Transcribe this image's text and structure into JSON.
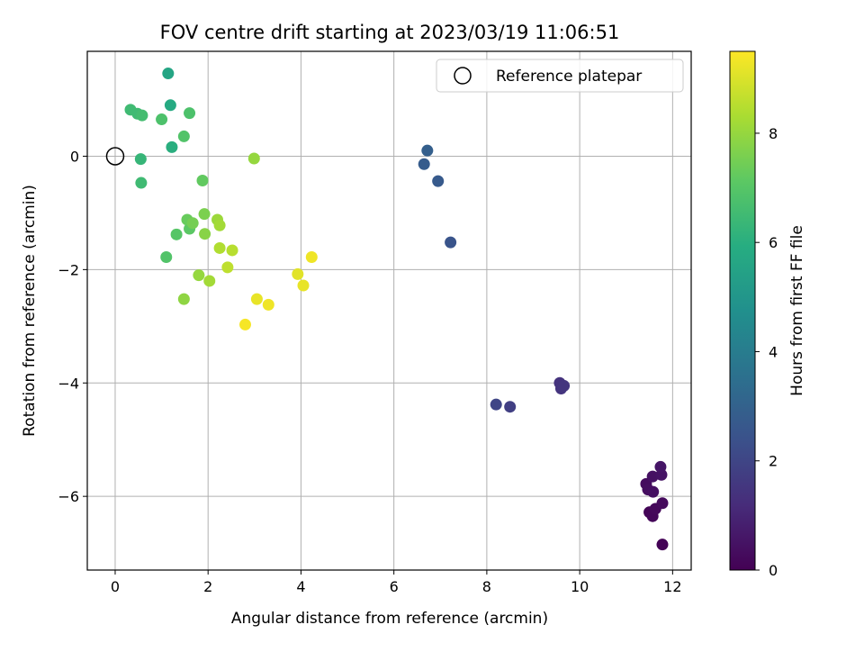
{
  "chart_data": {
    "type": "scatter",
    "title": "FOV centre drift starting at 2023/03/19 11:06:51",
    "xlabel": "Angular distance from reference (arcmin)",
    "ylabel": "Rotation from reference (arcmin)",
    "xlim": [
      -0.6,
      12.4
    ],
    "ylim": [
      -7.3,
      1.85
    ],
    "xticks": [
      0,
      2,
      4,
      6,
      8,
      10,
      12
    ],
    "yticks": [
      -6,
      -4,
      -2,
      0
    ],
    "grid": true,
    "legend": {
      "placement": "top-right",
      "entries": [
        "Reference platepar"
      ]
    },
    "reference_point": {
      "x": 0,
      "y": 0
    },
    "colorbar": {
      "label": "Hours from first FF file",
      "range": [
        0,
        9.5
      ],
      "ticks": [
        0,
        2,
        4,
        6,
        8
      ],
      "colormap": "viridis"
    },
    "points": [
      {
        "x": 11.78,
        "y": -6.85,
        "hours": 0.05
      },
      {
        "x": 11.5,
        "y": -6.28,
        "hours": 0.1
      },
      {
        "x": 11.57,
        "y": -6.35,
        "hours": 0.15
      },
      {
        "x": 11.63,
        "y": -6.22,
        "hours": 0.2
      },
      {
        "x": 11.78,
        "y": -6.12,
        "hours": 0.25
      },
      {
        "x": 11.43,
        "y": -5.78,
        "hours": 0.3
      },
      {
        "x": 11.47,
        "y": -5.88,
        "hours": 0.35
      },
      {
        "x": 11.58,
        "y": -5.92,
        "hours": 0.4
      },
      {
        "x": 11.57,
        "y": -5.65,
        "hours": 0.45
      },
      {
        "x": 11.76,
        "y": -5.62,
        "hours": 0.5
      },
      {
        "x": 11.74,
        "y": -5.48,
        "hours": 0.55
      },
      {
        "x": 9.57,
        "y": -4.0,
        "hours": 1.4
      },
      {
        "x": 9.6,
        "y": -4.1,
        "hours": 1.45
      },
      {
        "x": 9.66,
        "y": -4.05,
        "hours": 1.5
      },
      {
        "x": 8.5,
        "y": -4.42,
        "hours": 1.8
      },
      {
        "x": 8.2,
        "y": -4.38,
        "hours": 2.0
      },
      {
        "x": 7.22,
        "y": -1.52,
        "hours": 2.5
      },
      {
        "x": 6.95,
        "y": -0.44,
        "hours": 2.7
      },
      {
        "x": 6.65,
        "y": -0.14,
        "hours": 2.8
      },
      {
        "x": 6.72,
        "y": 0.1,
        "hours": 2.9
      },
      {
        "x": 1.14,
        "y": 1.46,
        "hours": 5.6
      },
      {
        "x": 1.19,
        "y": 0.9,
        "hours": 5.8
      },
      {
        "x": 1.22,
        "y": 0.16,
        "hours": 6.0
      },
      {
        "x": 0.55,
        "y": -0.05,
        "hours": 6.3
      },
      {
        "x": 0.33,
        "y": 0.82,
        "hours": 6.5
      },
      {
        "x": 0.48,
        "y": 0.75,
        "hours": 6.5
      },
      {
        "x": 0.58,
        "y": 0.72,
        "hours": 6.6
      },
      {
        "x": 0.56,
        "y": -0.47,
        "hours": 6.5
      },
      {
        "x": 1.0,
        "y": 0.65,
        "hours": 6.8
      },
      {
        "x": 1.6,
        "y": 0.76,
        "hours": 6.8
      },
      {
        "x": 1.48,
        "y": 0.35,
        "hours": 6.9
      },
      {
        "x": 1.1,
        "y": -1.78,
        "hours": 6.9
      },
      {
        "x": 1.32,
        "y": -1.38,
        "hours": 7.0
      },
      {
        "x": 1.6,
        "y": -1.28,
        "hours": 7.1
      },
      {
        "x": 1.88,
        "y": -0.43,
        "hours": 7.2
      },
      {
        "x": 1.55,
        "y": -1.12,
        "hours": 7.3
      },
      {
        "x": 1.67,
        "y": -1.18,
        "hours": 7.5
      },
      {
        "x": 1.92,
        "y": -1.02,
        "hours": 7.6
      },
      {
        "x": 1.93,
        "y": -1.37,
        "hours": 7.8
      },
      {
        "x": 1.48,
        "y": -2.52,
        "hours": 7.9
      },
      {
        "x": 2.99,
        "y": -0.04,
        "hours": 8.0
      },
      {
        "x": 1.8,
        "y": -2.1,
        "hours": 8.0
      },
      {
        "x": 2.2,
        "y": -1.12,
        "hours": 8.1
      },
      {
        "x": 2.25,
        "y": -1.22,
        "hours": 8.2
      },
      {
        "x": 2.03,
        "y": -2.2,
        "hours": 8.2
      },
      {
        "x": 2.25,
        "y": -1.62,
        "hours": 8.4
      },
      {
        "x": 2.52,
        "y": -1.66,
        "hours": 8.5
      },
      {
        "x": 2.42,
        "y": -1.96,
        "hours": 8.6
      },
      {
        "x": 3.93,
        "y": -2.08,
        "hours": 9.1
      },
      {
        "x": 4.05,
        "y": -2.28,
        "hours": 9.2
      },
      {
        "x": 4.23,
        "y": -1.78,
        "hours": 9.3
      },
      {
        "x": 3.05,
        "y": -2.52,
        "hours": 9.2
      },
      {
        "x": 3.3,
        "y": -2.62,
        "hours": 9.3
      },
      {
        "x": 2.8,
        "y": -2.97,
        "hours": 9.4
      }
    ]
  }
}
